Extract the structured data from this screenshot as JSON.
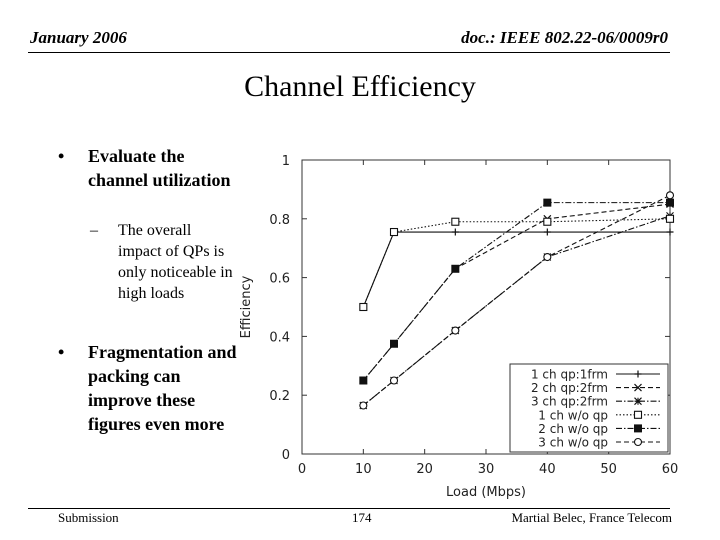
{
  "header": {
    "date": "January 2006",
    "doc_id": "doc.: IEEE 802.22-06/0009r0"
  },
  "title": "Channel Efficiency",
  "bullets": [
    {
      "marker": "•",
      "text": "Evaluate the channel utilization"
    },
    {
      "marker": "•",
      "text": "Fragmentation and packing can improve these figures even more"
    }
  ],
  "sub_bullets": [
    {
      "marker": "–",
      "text": "The overall impact of QPs is only noticeable in high loads"
    }
  ],
  "footer": {
    "left": "Submission",
    "page": "174",
    "author": "Martial Belec, France Telecom"
  },
  "chart_data": {
    "type": "line",
    "title": "",
    "xlabel": "Load (Mbps)",
    "ylabel": "Efficiency",
    "xlim": [
      0,
      60
    ],
    "ylim": [
      0,
      1
    ],
    "xticks": [
      0,
      10,
      20,
      30,
      40,
      50,
      60
    ],
    "yticks": [
      0,
      0.2,
      0.4,
      0.6,
      0.8,
      1
    ],
    "grid": false,
    "legend_position": "bottom-right",
    "series": [
      {
        "name": "1 ch qp:1frm",
        "marker": "plus",
        "dash": "solid",
        "x": [
          10,
          15,
          25,
          40,
          60
        ],
        "y": [
          0.5,
          0.755,
          0.755,
          0.755,
          0.755
        ]
      },
      {
        "name": "2 ch qp:2frm",
        "marker": "x",
        "dash": "dashed",
        "x": [
          10,
          15,
          25,
          40,
          60
        ],
        "y": [
          0.25,
          0.375,
          0.63,
          0.8,
          0.85
        ]
      },
      {
        "name": "3 ch qp:2frm",
        "marker": "star",
        "dash": "dashdot",
        "x": [
          10,
          15,
          25,
          40,
          60
        ],
        "y": [
          0.165,
          0.25,
          0.42,
          0.67,
          0.81
        ]
      },
      {
        "name": "1 ch w/o qp",
        "marker": "square-open",
        "dash": "dotted",
        "x": [
          10,
          15,
          25,
          40,
          60
        ],
        "y": [
          0.5,
          0.755,
          0.79,
          0.79,
          0.8
        ]
      },
      {
        "name": "2 ch w/o qp",
        "marker": "square-filled",
        "dash": "dashdot",
        "x": [
          10,
          15,
          25,
          40,
          60
        ],
        "y": [
          0.25,
          0.375,
          0.63,
          0.855,
          0.855
        ]
      },
      {
        "name": "3 ch w/o qp",
        "marker": "circle-open",
        "dash": "dashed",
        "x": [
          10,
          15,
          25,
          40,
          60
        ],
        "y": [
          0.165,
          0.25,
          0.42,
          0.67,
          0.88
        ]
      }
    ]
  }
}
